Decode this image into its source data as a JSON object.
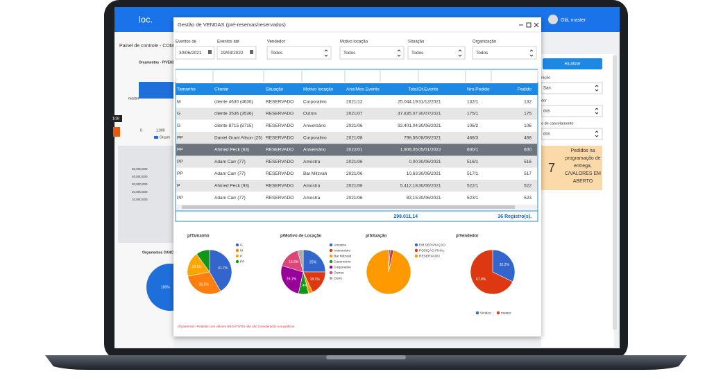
{
  "app": {
    "logo": "loc.",
    "user": "Olá, master",
    "breadcrumb": "Painel de controle - COMER",
    "page_badge": "1/38",
    "bg_chart_title": "Orçamentos - P/VEND",
    "bg_chart_category": "master",
    "bg_chart_xticks": [
      "0",
      "1.000"
    ],
    "bg_chart_legend": "Orçam",
    "bg_axis_labels": [
      "50,000,000",
      "40,000,000",
      "30,000,000",
      "20,000,000",
      "10,000,000"
    ],
    "bg_pie_title": "Orçamentos CANCEL",
    "bg_pie_label": "100%",
    "refresh_button": "Atualizar",
    "side_labels": [
      "nição",
      "dor",
      "o de cancelamento"
    ],
    "side_selects": [
      "San",
      "dos",
      "dos"
    ],
    "summary_count": "7",
    "summary_lines": [
      "Pedidos na",
      "programação de",
      "entrega,",
      "C/VALORES EM",
      "ABERTO"
    ]
  },
  "modal": {
    "title": "Gestão de VENDAS (pré-reservas/reservados)",
    "filters": [
      {
        "label": "Eventos de",
        "value": "30/06/2021"
      },
      {
        "label": "Eventos até",
        "value": "19/03/2022"
      },
      {
        "label": "Vendedor",
        "value": "Todos"
      },
      {
        "label": "Motivo locação",
        "value": "Todos"
      },
      {
        "label": "Situação",
        "value": "Todos"
      },
      {
        "label": "Organização",
        "value": "Todos"
      }
    ],
    "table": {
      "columns": [
        "Tamanho",
        "Cliente",
        "Situação",
        "Motivo locação",
        "Ano/Mes Evento",
        "Total",
        "Dt.Evento",
        "Nro.Pedido",
        "Pedido"
      ],
      "rows": [
        [
          "M",
          "cliente 4630 (4630)",
          "RESERVADO",
          "Corporativo",
          "2021/12",
          "25.044,19",
          "31/12/2021",
          "132/1",
          "132"
        ],
        [
          "G",
          "cliente 3536 (3536)",
          "RESERVADO",
          "Outros",
          "2021/07",
          "47.835,07",
          "30/07/2021",
          "175/1",
          "175"
        ],
        [
          "G",
          "cliente 8715 (8715)",
          "RESERVADO",
          "Aniversário",
          "2021/06",
          "32.401,04",
          "30/06/2021",
          "106/2",
          "106"
        ],
        [
          "PP",
          "Daniel Grant Alison (25)",
          "RESERVADO",
          "Corporativo",
          "2021/08",
          "798,56",
          "08/08/2021",
          "468/3",
          "468"
        ],
        [
          "PP",
          "Ahmed Peck (63)",
          "RESERVADO",
          "Aniversário",
          "2022/01",
          "1.906,05",
          "05/01/2022",
          "600/1",
          "600"
        ],
        [
          "PP",
          "Adam Carr (77)",
          "RESERVADO",
          "Amostra",
          "2021/06",
          "0,00",
          "30/06/2021",
          "516/1",
          "516"
        ],
        [
          "PP",
          "Adam Carr (77)",
          "RESERVADO",
          "Bar Mitzvah",
          "2021/06",
          "10,63",
          "30/06/2021",
          "517/1",
          "517"
        ],
        [
          "P",
          "Ahmed Peck (93)",
          "RESERVADO",
          "Amostra",
          "2021/06",
          "5.412,18",
          "30/06/2021",
          "522/1",
          "522"
        ],
        [
          "PP",
          "Adam Carr (77)",
          "RESERVADO",
          "Amostra",
          "2021/06",
          "83,15",
          "30/06/2021",
          "523/1",
          "523"
        ]
      ],
      "selected_row": 4,
      "total": "298.011,14",
      "records": "36 Registro(s)."
    },
    "note": "Orçamentos / Pedidos com valores NEGATIVOS não são considerados nos gráficos."
  },
  "chart_data": [
    {
      "type": "pie",
      "title": "p/Tamanho",
      "categories": [
        "G",
        "M",
        "P",
        "PP"
      ],
      "values": [
        41.7,
        30.2,
        18.1,
        10
      ],
      "value_labels": [
        "41.7%",
        "30.2%",
        "18.1%",
        null
      ],
      "colors": [
        "#3366cc",
        "#ff7f0e",
        "#ffa500",
        "#109618"
      ],
      "legend": "right"
    },
    {
      "type": "pie",
      "title": "p/Motivo de Locação",
      "categories": [
        "Amostra",
        "Aniversário",
        "Bar Mitzvah",
        "Casamento",
        "Corporativo",
        "Outros",
        "Outro"
      ],
      "values": [
        25,
        18.1,
        3,
        7.4,
        26.1,
        16.3,
        4.1
      ],
      "value_labels": [
        "25%",
        "18.1%",
        null,
        "7.4%",
        "26.1%",
        "16.3%",
        null
      ],
      "colors": [
        "#3366cc",
        "#dc3912",
        "#ff9900",
        "#109618",
        "#990099",
        "#dd4477",
        "#aaaaaa"
      ],
      "legend": "right"
    },
    {
      "type": "pie",
      "title": "p/Situação",
      "categories": [
        "EM SEPARAÇÃO",
        "POSIÇÃO FINAL",
        "RESERVADO"
      ],
      "values": [
        1.2,
        2.5,
        96.3
      ],
      "colors": [
        "#3366cc",
        "#dc3912",
        "#ff9900"
      ],
      "legend": "right"
    },
    {
      "type": "pie",
      "title": "p/Vendedor",
      "categories": [
        "Vivaloo",
        "master"
      ],
      "values": [
        32.2,
        67.8
      ],
      "value_labels": [
        "32.2%",
        "67.8%"
      ],
      "colors": [
        "#3366cc",
        "#dc3912"
      ],
      "legend": "bottom"
    }
  ]
}
